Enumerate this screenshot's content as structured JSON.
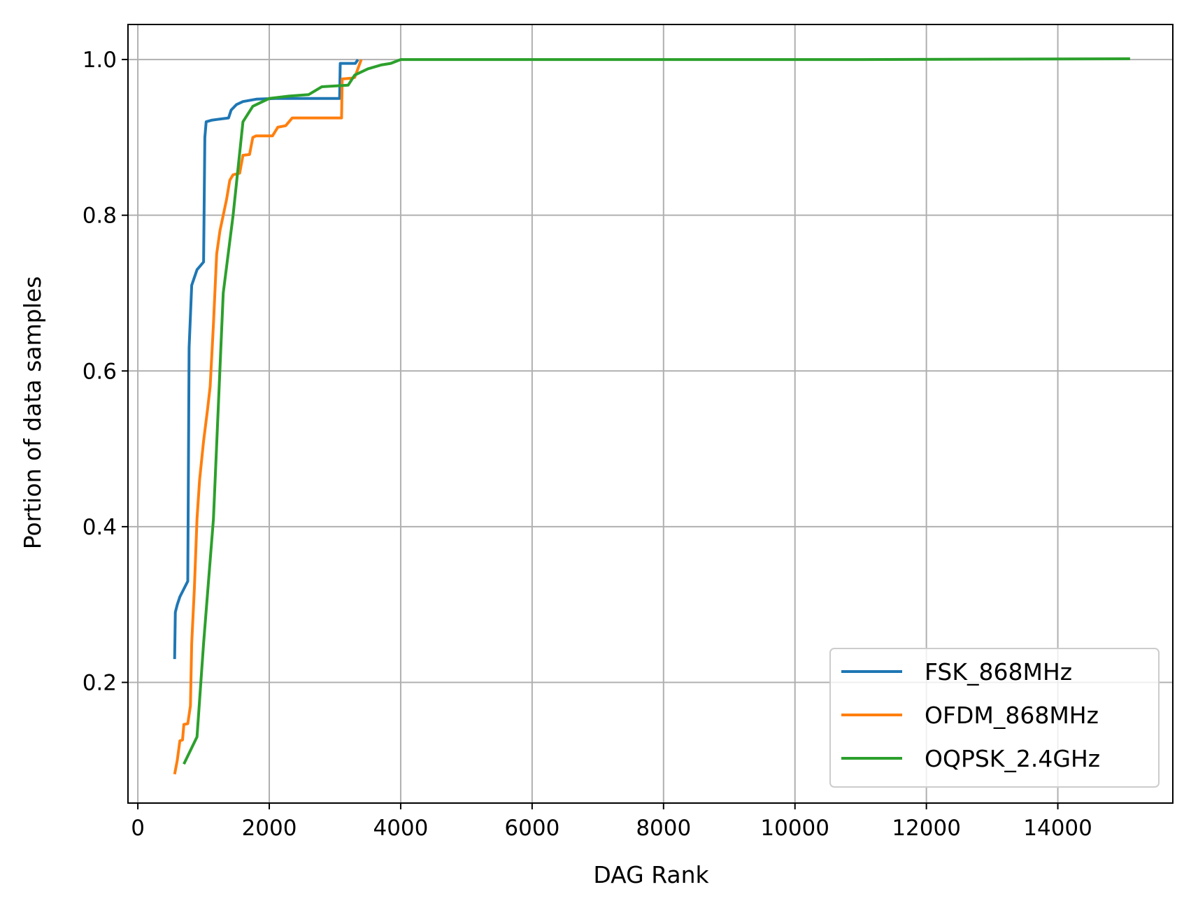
{
  "chart_data": {
    "type": "line",
    "title": "",
    "xlabel": "DAG Rank",
    "ylabel": "Portion of data samples",
    "xlim": [
      -150,
      15750
    ],
    "ylim": [
      0.045,
      1.045
    ],
    "xticks": [
      0,
      2000,
      4000,
      6000,
      8000,
      10000,
      12000,
      14000
    ],
    "yticks": [
      0.2,
      0.4,
      0.6,
      0.8,
      1.0
    ],
    "xtick_labels": [
      "0",
      "2000",
      "4000",
      "6000",
      "8000",
      "10000",
      "12000",
      "14000"
    ],
    "ytick_labels": [
      "0.2",
      "0.4",
      "0.6",
      "0.8",
      "1.0"
    ],
    "grid": true,
    "legend_position": "lower-right",
    "series": [
      {
        "name": "FSK_868MHz",
        "color": "#1f77b4",
        "points": [
          [
            560,
            0.23
          ],
          [
            570,
            0.29
          ],
          [
            600,
            0.3
          ],
          [
            640,
            0.31
          ],
          [
            700,
            0.32
          ],
          [
            760,
            0.33
          ],
          [
            780,
            0.63
          ],
          [
            820,
            0.71
          ],
          [
            860,
            0.72
          ],
          [
            900,
            0.73
          ],
          [
            1000,
            0.74
          ],
          [
            1020,
            0.9
          ],
          [
            1040,
            0.92
          ],
          [
            1120,
            0.922
          ],
          [
            1200,
            0.923
          ],
          [
            1380,
            0.925
          ],
          [
            1420,
            0.935
          ],
          [
            1500,
            0.942
          ],
          [
            1600,
            0.946
          ],
          [
            1800,
            0.949
          ],
          [
            2100,
            0.95
          ],
          [
            3070,
            0.95
          ],
          [
            3080,
            0.995
          ],
          [
            3310,
            0.995
          ],
          [
            3350,
            1.0
          ]
        ]
      },
      {
        "name": "OFDM_868MHz",
        "color": "#ff7f0e",
        "points": [
          [
            560,
            0.082
          ],
          [
            600,
            0.1
          ],
          [
            640,
            0.125
          ],
          [
            680,
            0.126
          ],
          [
            700,
            0.146
          ],
          [
            760,
            0.147
          ],
          [
            800,
            0.17
          ],
          [
            820,
            0.25
          ],
          [
            860,
            0.32
          ],
          [
            900,
            0.41
          ],
          [
            940,
            0.46
          ],
          [
            1000,
            0.51
          ],
          [
            1060,
            0.55
          ],
          [
            1100,
            0.58
          ],
          [
            1150,
            0.66
          ],
          [
            1200,
            0.75
          ],
          [
            1250,
            0.78
          ],
          [
            1300,
            0.8
          ],
          [
            1350,
            0.82
          ],
          [
            1400,
            0.845
          ],
          [
            1450,
            0.852
          ],
          [
            1550,
            0.854
          ],
          [
            1600,
            0.877
          ],
          [
            1700,
            0.878
          ],
          [
            1750,
            0.9
          ],
          [
            1800,
            0.902
          ],
          [
            2050,
            0.902
          ],
          [
            2130,
            0.913
          ],
          [
            2250,
            0.915
          ],
          [
            2350,
            0.925
          ],
          [
            3100,
            0.925
          ],
          [
            3110,
            0.975
          ],
          [
            3250,
            0.976
          ],
          [
            3300,
            0.977
          ],
          [
            3400,
            1.0
          ]
        ]
      },
      {
        "name": "OQPSK_2.4GHz",
        "color": "#2ca02c",
        "points": [
          [
            700,
            0.095
          ],
          [
            900,
            0.13
          ],
          [
            1000,
            0.25
          ],
          [
            1150,
            0.41
          ],
          [
            1300,
            0.7
          ],
          [
            1450,
            0.8
          ],
          [
            1600,
            0.92
          ],
          [
            1750,
            0.94
          ],
          [
            2000,
            0.95
          ],
          [
            2300,
            0.953
          ],
          [
            2600,
            0.955
          ],
          [
            2800,
            0.965
          ],
          [
            3200,
            0.967
          ],
          [
            3300,
            0.98
          ],
          [
            3500,
            0.988
          ],
          [
            3700,
            0.993
          ],
          [
            3850,
            0.995
          ],
          [
            4000,
            1.0
          ],
          [
            5000,
            1.0
          ],
          [
            11000,
            1.0
          ],
          [
            15100,
            1.001
          ]
        ]
      }
    ]
  }
}
